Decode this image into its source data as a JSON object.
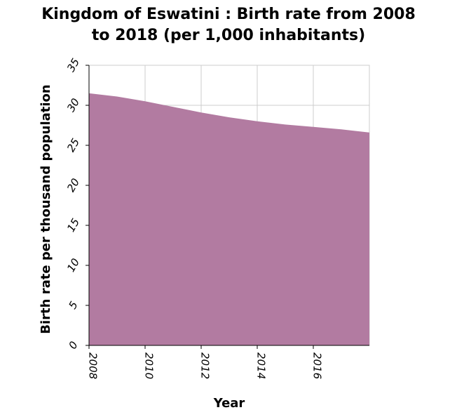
{
  "chart_data": {
    "type": "area",
    "title_lines": [
      "Kingdom of Eswatini : Birth rate from 2008",
      "to 2018 (per 1,000 inhabitants)"
    ],
    "xlabel": "Year",
    "ylabel": "Birth rate per thousand population",
    "x": [
      2008,
      2009,
      2010,
      2011,
      2012,
      2013,
      2014,
      2015,
      2016,
      2017,
      2018
    ],
    "series": [
      {
        "values": [
          31.5,
          31.1,
          30.5,
          29.8,
          29.1,
          28.5,
          28.0,
          27.6,
          27.3,
          27.0,
          26.6
        ]
      }
    ],
    "xlim": [
      2008,
      2018
    ],
    "ylim": [
      0,
      35
    ],
    "xticks": [
      "2008",
      "2010",
      "2012",
      "2014",
      "2016"
    ],
    "yticks": [
      "0",
      "5",
      "10",
      "15",
      "20",
      "25",
      "30",
      "35"
    ],
    "grid": true,
    "fill_color": "#b27ba1"
  }
}
